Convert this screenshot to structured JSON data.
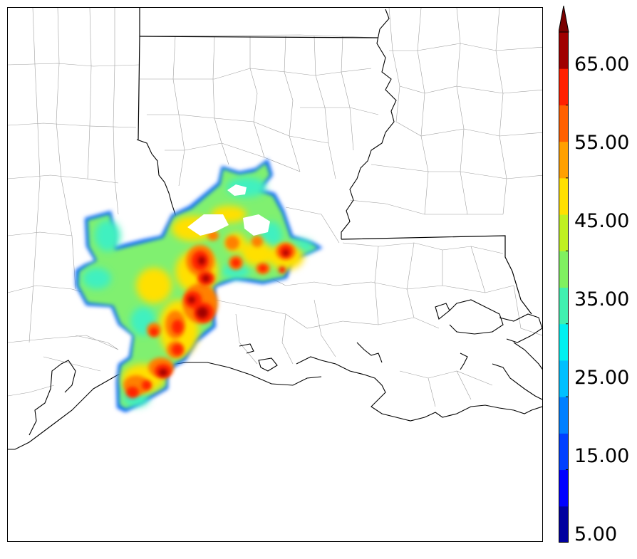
{
  "colorbar": {
    "levels": [
      5,
      10,
      15,
      20,
      25,
      30,
      35,
      40,
      45,
      50,
      55,
      60,
      65,
      70
    ],
    "colors": [
      "#00009f",
      "#0000ff",
      "#0040ff",
      "#0080ff",
      "#00c0ff",
      "#00f0f0",
      "#40f0b0",
      "#80f060",
      "#c0f020",
      "#ffe000",
      "#ffa000",
      "#ff6000",
      "#ff2000",
      "#a00000"
    ],
    "extend_color": "#7a0000",
    "tick_labels": [
      "5.00",
      "15.00",
      "25.00",
      "35.00",
      "45.00",
      "55.00",
      "65.00"
    ],
    "extend": "max"
  },
  "map": {
    "border_color": "#000000",
    "county_line_color": "#9a9a9a",
    "state_line_color": "#000000",
    "coast_color": "#000000"
  }
}
